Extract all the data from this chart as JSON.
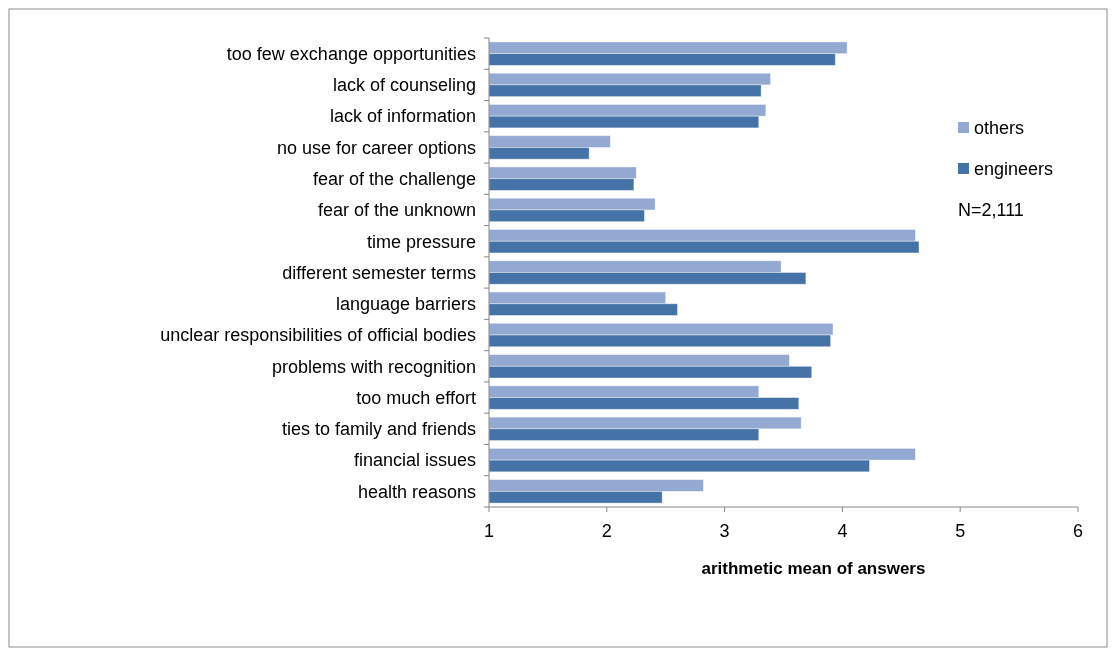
{
  "chart_data": {
    "type": "bar",
    "orientation": "horizontal",
    "xlabel": "arithmetic mean of answers",
    "categories": [
      "too few exchange opportunities",
      "lack of counseling",
      "lack of information",
      "no use for career options",
      "fear of the challenge",
      "fear of the unknown",
      "time pressure",
      "different semester terms",
      "language barriers",
      "unclear responsibilities of official bodies",
      "problems with recognition",
      "too much effort",
      "ties to family and friends",
      "financial issues",
      "health reasons"
    ],
    "series": [
      {
        "name": "others",
        "color": "#94a9d1",
        "values": [
          4.04,
          3.39,
          3.35,
          2.03,
          2.25,
          2.41,
          4.62,
          3.48,
          2.5,
          3.92,
          3.55,
          3.29,
          3.65,
          4.62,
          2.82
        ]
      },
      {
        "name": "engineers",
        "color": "#4573a7",
        "values": [
          3.94,
          3.31,
          3.29,
          1.85,
          2.23,
          2.32,
          4.65,
          3.69,
          2.6,
          3.9,
          3.74,
          3.63,
          3.29,
          4.23,
          2.47
        ]
      }
    ],
    "xlim": [
      1,
      6
    ],
    "xticks": [
      1,
      2,
      3,
      4,
      5,
      6
    ],
    "grid": false,
    "legend": "right",
    "annotations": [
      "N=2,111"
    ]
  }
}
